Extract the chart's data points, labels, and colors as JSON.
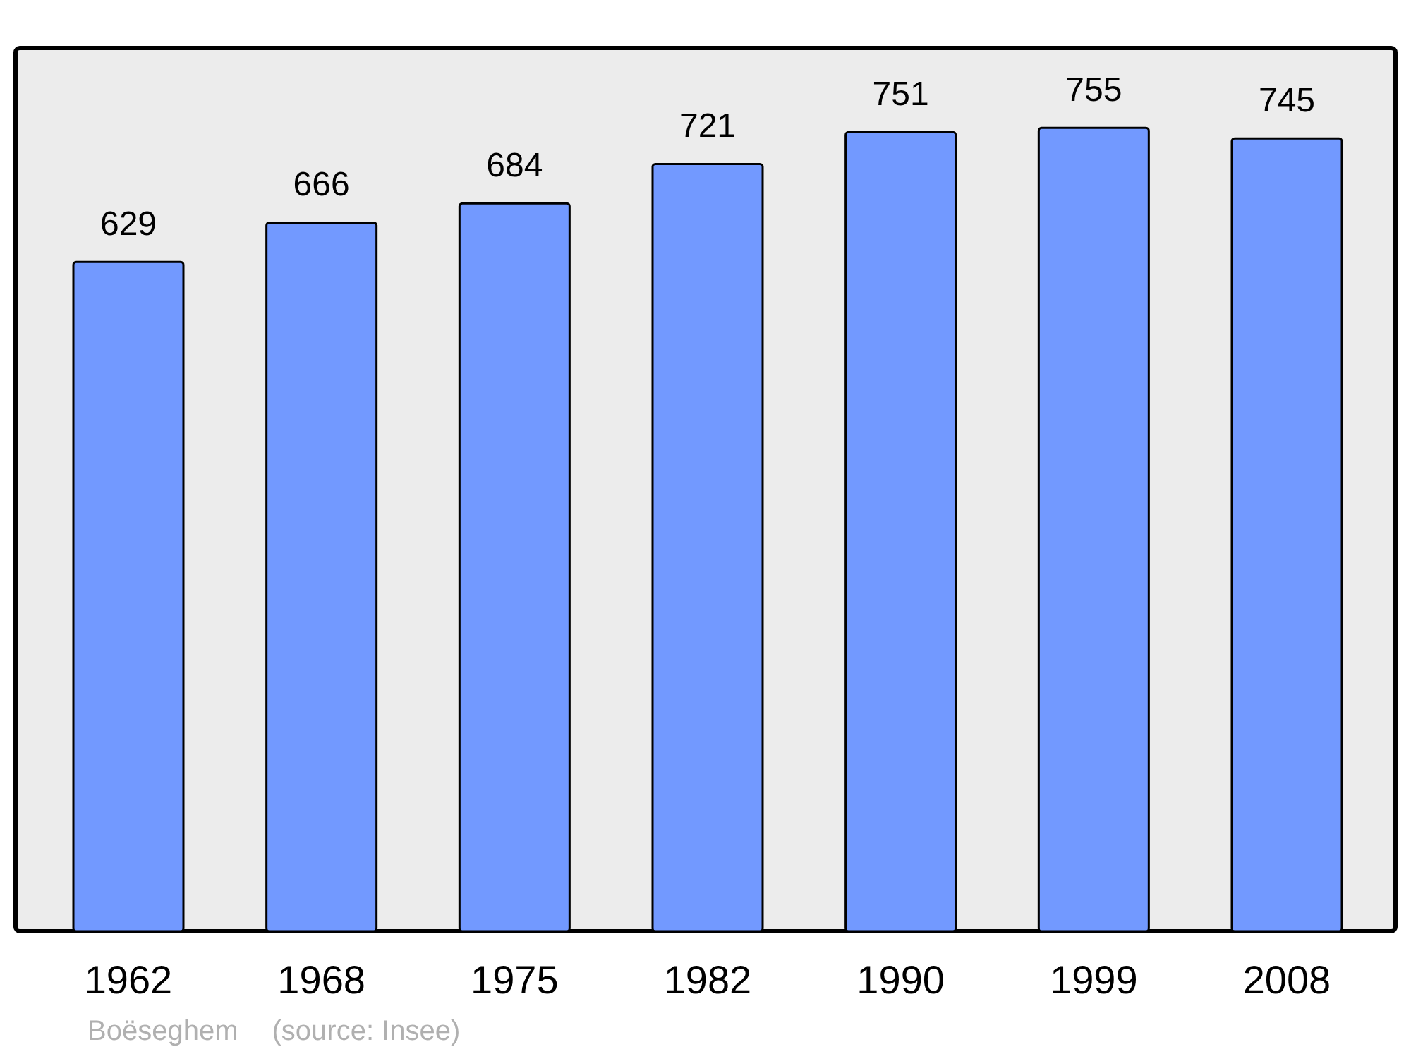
{
  "chart_data": {
    "type": "bar",
    "categories": [
      "1962",
      "1968",
      "1975",
      "1982",
      "1990",
      "1999",
      "2008"
    ],
    "values": [
      629,
      666,
      684,
      721,
      751,
      755,
      745
    ],
    "color": "#7299ff",
    "ylim": [
      0,
      830
    ],
    "tick_labels": "x",
    "data_labels": true,
    "annotations": [
      "Boëseghem",
      "(source: Insee)"
    ]
  }
}
